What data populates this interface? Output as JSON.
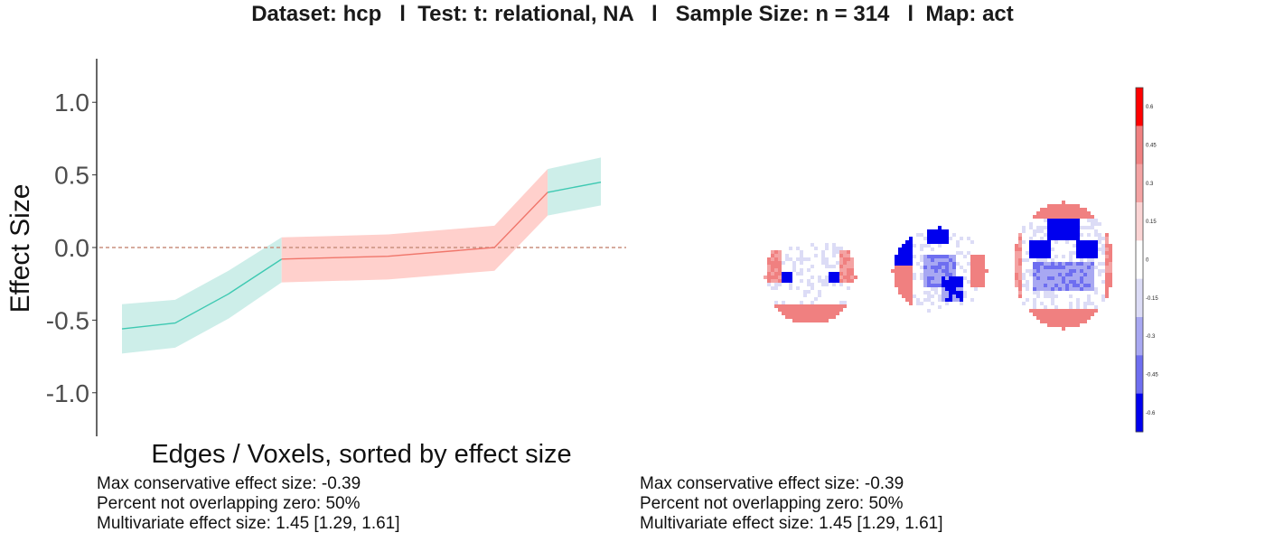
{
  "header": {
    "title": "Dataset: hcp   l  Test: t: relational, NA   l   Sample Size: n = 314   l  Map: act"
  },
  "chart_data": [
    {
      "type": "line",
      "title": "",
      "xlabel": "Edges / Voxels, sorted by effect size",
      "ylabel": "Effect Size",
      "ylim": [
        -1.3,
        1.3
      ],
      "yticks": [
        {
          "value": 1.0,
          "label": "1.0"
        },
        {
          "value": 0.5,
          "label": "0.5"
        },
        {
          "value": 0.0,
          "label": "0.0"
        },
        {
          "value": -0.5,
          "label": "-0.5"
        },
        {
          "value": -1.0,
          "label": "-1.0"
        }
      ],
      "reference_line": {
        "y": 0,
        "style": "dashed",
        "color": "#c98f7f"
      },
      "grid": false,
      "series_colors": {
        "not_overlapping_zero": "#3ec9b2",
        "overlapping_zero": "#f0766b",
        "not_overlapping_zero_band": "#cdeee9",
        "overlapping_zero_band": "#ffd0cc"
      },
      "points": [
        {
          "x": 1,
          "y": -0.56,
          "lower": -0.73,
          "upper": -0.39,
          "group": "not_overlapping_zero"
        },
        {
          "x": 2,
          "y": -0.52,
          "lower": -0.69,
          "upper": -0.36,
          "group": "not_overlapping_zero"
        },
        {
          "x": 3,
          "y": -0.32,
          "lower": -0.49,
          "upper": -0.16,
          "group": "not_overlapping_zero"
        },
        {
          "x": 4,
          "y": -0.08,
          "lower": -0.24,
          "upper": 0.07,
          "group": "overlapping_zero"
        },
        {
          "x": 6,
          "y": -0.06,
          "lower": -0.22,
          "upper": 0.09,
          "group": "overlapping_zero"
        },
        {
          "x": 8,
          "y": 0.0,
          "lower": -0.16,
          "upper": 0.15,
          "group": "overlapping_zero"
        },
        {
          "x": 9,
          "y": 0.38,
          "lower": 0.22,
          "upper": 0.54,
          "group": "not_overlapping_zero"
        },
        {
          "x": 10,
          "y": 0.45,
          "lower": 0.29,
          "upper": 0.62,
          "group": "not_overlapping_zero"
        }
      ]
    },
    {
      "type": "heatmap",
      "title": "",
      "colorbar": {
        "ticks": [
          "0.6",
          "0.45",
          "0.3",
          "0.15",
          "0",
          "-0.15",
          "-0.3",
          "-0.45",
          "-0.6"
        ],
        "bands": [
          "#ff0000",
          "#f08080",
          "#f4a3a3",
          "#fbd4d4",
          "#ffffff",
          "#dcdcf6",
          "#a8a8f2",
          "#6e6ef0",
          "#0000ee"
        ]
      },
      "slices": [
        "axial-inferior",
        "axial-middle",
        "axial-superior"
      ]
    }
  ],
  "stats_left": {
    "line1": "Max conservative effect size: -0.39",
    "line2": "Percent not overlapping zero: 50%",
    "line3": "Multivariate effect size: 1.45 [1.29, 1.61]"
  },
  "stats_right": {
    "line1": "Max conservative effect size: -0.39",
    "line2": "Percent not overlapping zero: 50%",
    "line3": "Multivariate effect size: 1.45 [1.29, 1.61]"
  }
}
